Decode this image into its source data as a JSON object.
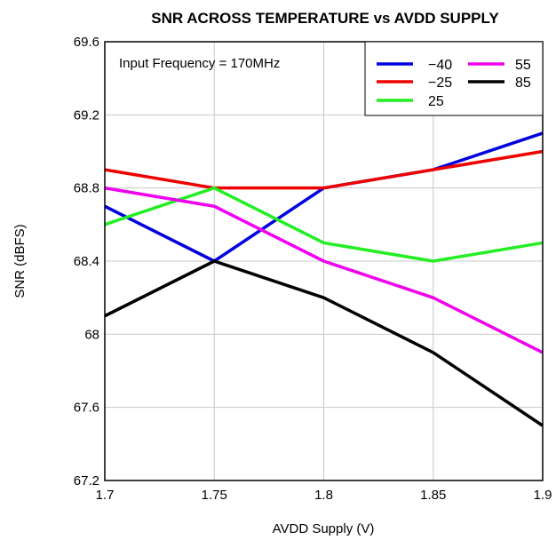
{
  "chart_data": {
    "type": "line",
    "title": "SNR ACROSS TEMPERATURE vs AVDD SUPPLY",
    "xlabel": "AVDD Supply (V)",
    "ylabel": "SNR (dBFS)",
    "xlim": [
      1.7,
      1.9
    ],
    "ylim": [
      67.2,
      69.6
    ],
    "x_ticks": [
      "1.7",
      "1.75",
      "1.8",
      "1.85",
      "1.9"
    ],
    "y_ticks": [
      "69.6",
      "69.2",
      "68.8",
      "68.4",
      "68",
      "67.6",
      "67.2"
    ],
    "grid": true,
    "legend_position": "top-right",
    "annotation": "Input Frequency = 170MHz",
    "x": [
      1.7,
      1.75,
      1.8,
      1.85,
      1.9
    ],
    "series": [
      {
        "name": "−40",
        "color": "#0000e0",
        "values": [
          68.7,
          68.4,
          68.8,
          68.9,
          69.1
        ]
      },
      {
        "name": "−25",
        "color": "#ee0000",
        "values": [
          68.9,
          68.8,
          68.8,
          68.9,
          69.0
        ]
      },
      {
        "name": "25",
        "color": "#22ee22",
        "values": [
          68.6,
          68.8,
          68.5,
          68.4,
          68.5
        ]
      },
      {
        "name": "55",
        "color": "#ee00ee",
        "values": [
          68.8,
          68.7,
          68.4,
          68.2,
          67.9
        ]
      },
      {
        "name": "85",
        "color": "#000000",
        "values": [
          68.1,
          68.4,
          68.2,
          67.9,
          67.5
        ]
      }
    ]
  }
}
